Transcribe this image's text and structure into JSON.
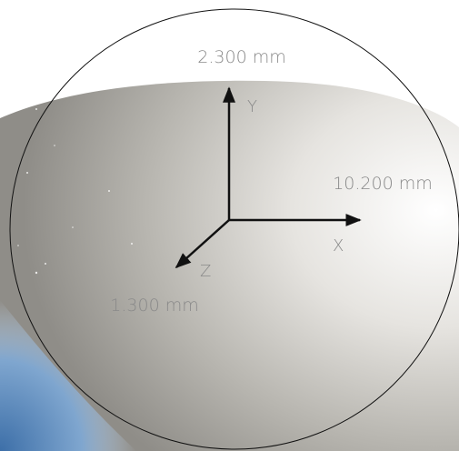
{
  "axes": [
    {
      "name": "Y",
      "value": "2.300 mm"
    },
    {
      "name": "X",
      "value": "10.200 mm"
    },
    {
      "name": "Z",
      "value": "1.300 mm"
    }
  ]
}
